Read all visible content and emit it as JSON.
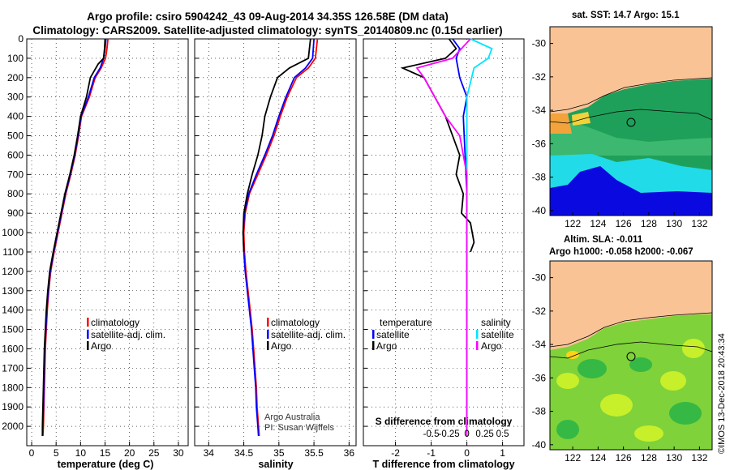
{
  "header": {
    "title_line1": "Argo profile: csiro 5904242_43 09-Aug-2014 34.35S 126.58E (DM data)",
    "title_line2": "Climatology: CARS2009. Satellite-adjusted climatology: synTS_20140809.nc (0.15d earlier)"
  },
  "colors": {
    "climatology": "#ff0000",
    "satellite": "#0000ff",
    "argo": "#000000",
    "salinity_sat": "#00e5ff",
    "salinity_argo": "#ff00ff"
  },
  "chart_data": [
    {
      "type": "line",
      "id": "temperature",
      "xlabel": "temperature (deg C)",
      "xlim": [
        -1,
        32
      ],
      "ylim": [
        2100,
        0
      ],
      "xticks": [
        0,
        5,
        10,
        15,
        20,
        25,
        30
      ],
      "yticks": [
        0,
        100,
        200,
        300,
        400,
        500,
        600,
        700,
        800,
        900,
        1000,
        1100,
        1200,
        1300,
        1400,
        1500,
        1600,
        1700,
        1800,
        1900,
        2000
      ],
      "grid": true,
      "legend": [
        "climatology",
        "satellite-adj. clim.",
        "Argo"
      ],
      "legend_position": "middle-right",
      "series": [
        {
          "name": "climatology",
          "color": "#ff0000",
          "points": [
            [
              15.6,
              0
            ],
            [
              15.4,
              50
            ],
            [
              15.1,
              100
            ],
            [
              14.2,
              150
            ],
            [
              13.0,
              200
            ],
            [
              11.8,
              300
            ],
            [
              10.2,
              400
            ],
            [
              9.6,
              500
            ],
            [
              8.9,
              600
            ],
            [
              8.0,
              700
            ],
            [
              7.0,
              800
            ],
            [
              6.2,
              900
            ],
            [
              5.4,
              1000
            ],
            [
              4.6,
              1100
            ],
            [
              3.9,
              1200
            ],
            [
              3.5,
              1300
            ],
            [
              3.2,
              1400
            ],
            [
              3.0,
              1500
            ],
            [
              2.8,
              1600
            ],
            [
              2.7,
              1700
            ],
            [
              2.6,
              1800
            ],
            [
              2.5,
              1900
            ],
            [
              2.4,
              2000
            ],
            [
              2.3,
              2050
            ]
          ]
        },
        {
          "name": "satellite-adj. clim.",
          "color": "#0000ff",
          "points": [
            [
              15.2,
              0
            ],
            [
              15.0,
              50
            ],
            [
              14.7,
              100
            ],
            [
              14.0,
              150
            ],
            [
              12.8,
              200
            ],
            [
              11.6,
              300
            ],
            [
              10.1,
              400
            ],
            [
              9.5,
              500
            ],
            [
              8.8,
              600
            ],
            [
              7.9,
              700
            ],
            [
              6.9,
              800
            ],
            [
              6.1,
              900
            ],
            [
              5.3,
              1000
            ],
            [
              4.5,
              1100
            ],
            [
              3.8,
              1200
            ],
            [
              3.4,
              1300
            ],
            [
              3.1,
              1400
            ],
            [
              2.9,
              1500
            ],
            [
              2.7,
              1600
            ],
            [
              2.6,
              1700
            ],
            [
              2.5,
              1800
            ],
            [
              2.4,
              1900
            ],
            [
              2.3,
              2000
            ],
            [
              2.2,
              2050
            ]
          ]
        },
        {
          "name": "Argo",
          "color": "#000000",
          "points": [
            [
              15.0,
              0
            ],
            [
              14.9,
              50
            ],
            [
              14.7,
              100
            ],
            [
              13.6,
              130
            ],
            [
              12.0,
              200
            ],
            [
              11.2,
              300
            ],
            [
              10.0,
              400
            ],
            [
              9.4,
              500
            ],
            [
              8.7,
              600
            ],
            [
              7.8,
              700
            ],
            [
              6.8,
              800
            ],
            [
              6.0,
              900
            ],
            [
              5.2,
              1000
            ],
            [
              4.4,
              1100
            ],
            [
              3.7,
              1200
            ],
            [
              3.3,
              1300
            ],
            [
              3.0,
              1400
            ],
            [
              2.8,
              1500
            ],
            [
              2.6,
              1600
            ],
            [
              2.5,
              1700
            ],
            [
              2.4,
              1800
            ],
            [
              2.3,
              1900
            ],
            [
              2.2,
              2000
            ],
            [
              2.2,
              2050
            ]
          ]
        }
      ]
    },
    {
      "type": "line",
      "id": "salinity",
      "xlabel": "salinity",
      "xlim": [
        33.8,
        36.1
      ],
      "ylim": [
        2100,
        0
      ],
      "xticks": [
        34,
        34.5,
        35,
        35.5,
        36
      ],
      "grid": true,
      "legend": [
        "climatology",
        "satellite-adj. clim.",
        "Argo"
      ],
      "legend_position": "middle-right",
      "annotation": [
        "Argo Australia",
        "PI: Susan Wijffels"
      ],
      "series": [
        {
          "name": "climatology",
          "color": "#ff0000",
          "points": [
            [
              35.55,
              0
            ],
            [
              35.52,
              100
            ],
            [
              35.42,
              150
            ],
            [
              35.25,
              200
            ],
            [
              35.12,
              300
            ],
            [
              35.02,
              400
            ],
            [
              34.93,
              500
            ],
            [
              34.82,
              600
            ],
            [
              34.7,
              700
            ],
            [
              34.58,
              800
            ],
            [
              34.52,
              900
            ],
            [
              34.5,
              1000
            ],
            [
              34.51,
              1100
            ],
            [
              34.53,
              1200
            ],
            [
              34.56,
              1300
            ],
            [
              34.59,
              1400
            ],
            [
              34.62,
              1500
            ],
            [
              34.64,
              1600
            ],
            [
              34.66,
              1700
            ],
            [
              34.68,
              1800
            ],
            [
              34.69,
              1900
            ],
            [
              34.71,
              2000
            ],
            [
              34.72,
              2050
            ]
          ]
        },
        {
          "name": "satellite-adj. clim.",
          "color": "#0000ff",
          "points": [
            [
              35.5,
              0
            ],
            [
              35.48,
              100
            ],
            [
              35.38,
              150
            ],
            [
              35.22,
              200
            ],
            [
              35.1,
              300
            ],
            [
              35.0,
              400
            ],
            [
              34.91,
              500
            ],
            [
              34.8,
              600
            ],
            [
              34.68,
              700
            ],
            [
              34.57,
              800
            ],
            [
              34.51,
              900
            ],
            [
              34.49,
              1000
            ],
            [
              34.5,
              1100
            ],
            [
              34.52,
              1200
            ],
            [
              34.55,
              1300
            ],
            [
              34.58,
              1400
            ],
            [
              34.61,
              1500
            ],
            [
              34.63,
              1600
            ],
            [
              34.65,
              1700
            ],
            [
              34.67,
              1800
            ],
            [
              34.68,
              1900
            ],
            [
              34.7,
              2000
            ],
            [
              34.71,
              2050
            ]
          ]
        },
        {
          "name": "Argo",
          "color": "#000000",
          "points": [
            [
              35.45,
              0
            ],
            [
              35.42,
              100
            ],
            [
              35.15,
              150
            ],
            [
              34.98,
              200
            ],
            [
              34.88,
              300
            ],
            [
              34.8,
              400
            ],
            [
              34.76,
              500
            ],
            [
              34.7,
              600
            ],
            [
              34.62,
              700
            ],
            [
              34.55,
              800
            ],
            [
              34.5,
              900
            ],
            [
              34.49,
              1000
            ],
            [
              34.5,
              1100
            ]
          ]
        }
      ]
    },
    {
      "type": "line",
      "id": "difference",
      "xlabel": "T difference from climatology",
      "xlabel_top": "S difference from climatology",
      "xlim": [
        -2.9,
        1.6
      ],
      "ylim": [
        2100,
        0
      ],
      "xticks": [
        -2,
        -1,
        0,
        1
      ],
      "xticks_s": [
        "-0.5",
        "-0.25",
        "0",
        "0.25",
        "0.5"
      ],
      "grid": true,
      "legend_temperature": [
        "temperature",
        "satellite",
        "Argo"
      ],
      "legend_salinity": [
        "salinity",
        "satellite",
        "Argo"
      ],
      "series": [
        {
          "name": "T satellite",
          "color": "#0000ff",
          "points": [
            [
              -0.4,
              0
            ],
            [
              -0.2,
              50
            ],
            [
              -0.3,
              100
            ],
            [
              -0.2,
              200
            ],
            [
              0.0,
              300
            ],
            [
              -0.1,
              400
            ],
            [
              -0.05,
              600
            ],
            [
              0.0,
              800
            ],
            [
              0.0,
              1000
            ],
            [
              0.0,
              1200
            ],
            [
              0.0,
              2050
            ]
          ]
        },
        {
          "name": "T Argo",
          "color": "#000000",
          "points": [
            [
              -0.5,
              0
            ],
            [
              -0.3,
              50
            ],
            [
              -0.6,
              100
            ],
            [
              -1.8,
              150
            ],
            [
              -1.2,
              200
            ],
            [
              -0.9,
              300
            ],
            [
              -0.6,
              400
            ],
            [
              -0.4,
              500
            ],
            [
              -0.2,
              600
            ],
            [
              -0.3,
              700
            ],
            [
              -0.1,
              800
            ],
            [
              -0.15,
              900
            ],
            [
              0.1,
              950
            ],
            [
              0.2,
              1050
            ],
            [
              0.1,
              1100
            ]
          ]
        },
        {
          "name": "S satellite",
          "color": "#00e5ff",
          "points": [
            [
              0.05,
              0
            ],
            [
              0.35,
              50
            ],
            [
              0.3,
              100
            ],
            [
              0.1,
              150
            ],
            [
              0.0,
              300
            ],
            [
              0.0,
              600
            ],
            [
              0.0,
              1000
            ],
            [
              0.0,
              1500
            ],
            [
              0.0,
              2050
            ]
          ]
        },
        {
          "name": "S Argo",
          "color": "#ff00ff",
          "points": [
            [
              0.05,
              0
            ],
            [
              -0.2,
              100
            ],
            [
              -0.7,
              150
            ],
            [
              -0.6,
              200
            ],
            [
              -0.45,
              300
            ],
            [
              -0.3,
              400
            ],
            [
              -0.1,
              500
            ],
            [
              0.0,
              700
            ],
            [
              0.0,
              1000
            ],
            [
              0.0,
              1500
            ],
            [
              0.0,
              2050
            ]
          ]
        }
      ]
    },
    {
      "type": "heatmap",
      "id": "map_sst",
      "title": "sat. SST: 14.7 Argo: 15.1",
      "xticks": [
        122,
        124,
        126,
        128,
        130,
        132
      ],
      "yticks": [
        -30,
        -32,
        -34,
        -36,
        -38,
        -40
      ],
      "xlim": [
        120.2,
        133
      ],
      "ylim": [
        -40.3,
        -29
      ]
    },
    {
      "type": "heatmap",
      "id": "map_sla",
      "title_line1": "Altim. SLA: -0.011",
      "title_line2": "Argo h1000: -0.058 h2000: -0.067",
      "xticks": [
        122,
        124,
        126,
        128,
        130,
        132
      ],
      "yticks": [
        -30,
        -32,
        -34,
        -36,
        -38,
        -40
      ],
      "xlim": [
        120.2,
        133
      ],
      "ylim": [
        -40.3,
        -29
      ]
    }
  ],
  "credit": "©IMOS 13-Dec-2018 20:43:34"
}
